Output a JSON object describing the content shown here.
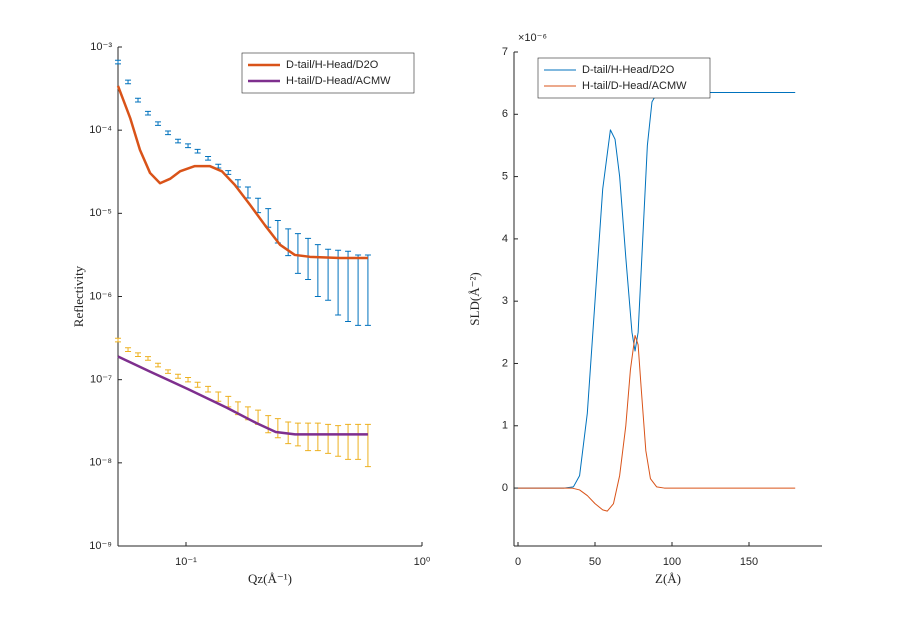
{
  "chart_data": [
    {
      "type": "line",
      "x_label": "Qz(Å⁻¹)",
      "y_label": "Reflectivity",
      "xscale": "log",
      "yscale": "log",
      "xlim": [
        0.0515,
        1
      ],
      "ylim": [
        1e-09,
        0.001
      ],
      "xticks": [
        {
          "value": 0.1,
          "label": "10⁻¹"
        },
        {
          "value": 1,
          "label": "10⁰"
        }
      ],
      "yticks": [
        {
          "value": 1e-09,
          "label": "10⁻⁹"
        },
        {
          "value": 1e-08,
          "label": "10⁻⁸"
        },
        {
          "value": 1e-07,
          "label": "10⁻⁷"
        },
        {
          "value": 1e-06,
          "label": "10⁻⁶"
        },
        {
          "value": 1e-05,
          "label": "10⁻⁵"
        },
        {
          "value": 0.0001,
          "label": "10⁻⁴"
        },
        {
          "value": 0.001,
          "label": "10⁻³"
        }
      ],
      "legend": "northeast",
      "series": [
        {
          "color": "#0072bd",
          "x": [
            0.0515,
            0.0568,
            0.0626,
            0.069,
            0.0761,
            0.0839,
            0.0925,
            0.102,
            0.112,
            0.124,
            0.137,
            0.151,
            0.166,
            0.183,
            0.202,
            0.223,
            0.245,
            0.271,
            0.298,
            0.329,
            0.362,
            0.4,
            0.441,
            0.486,
            0.536,
            0.59
          ],
          "values": [
            0.00066,
            0.00038,
            0.00023,
            0.00016,
            0.00012,
            9.3e-05,
            7.4e-05,
            6.5e-05,
            5.6e-05,
            4.6e-05,
            3.7e-05,
            3.1e-05,
            2.3e-05,
            1.8e-05,
            1.27e-05,
            9.1e-06,
            6.3e-06,
            4.8e-06,
            3.8e-06,
            3.3e-06,
            2.6e-06,
            2.3e-06,
            2.1e-06,
            2e-06,
            1.8e-06,
            1.8e-06
          ],
          "errors": [
            3.3e-05,
            1.9e-05,
            1.2e-05,
            8e-06,
            6e-06,
            4.7e-06,
            3.7e-06,
            3.3e-06,
            2.8e-06,
            2.3e-06,
            1.9e-06,
            1.6e-06,
            2.3e-06,
            2.7e-06,
            2.5e-06,
            2.3e-06,
            1.9e-06,
            1.7e-06,
            1.9e-06,
            1.7e-06,
            1.6e-06,
            1.4e-06,
            1.5e-06,
            1.5e-06,
            1.35e-06,
            1.35e-06
          ]
        },
        {
          "color": "#edb120",
          "x": [
            0.0515,
            0.0568,
            0.0626,
            0.069,
            0.0761,
            0.0839,
            0.0925,
            0.102,
            0.112,
            0.124,
            0.137,
            0.151,
            0.166,
            0.183,
            0.202,
            0.223,
            0.245,
            0.271,
            0.298,
            0.329,
            0.362,
            0.4,
            0.441,
            0.486,
            0.536,
            0.59
          ],
          "values": [
            3e-07,
            2.3e-07,
            2e-07,
            1.8e-07,
            1.5e-07,
            1.25e-07,
            1.1e-07,
            1e-07,
            8.7e-08,
            7.7e-08,
            6.3e-08,
            5.5e-08,
            4.6e-08,
            4e-08,
            3.6e-08,
            3e-08,
            2.7e-08,
            2.4e-08,
            2.3e-08,
            2.2e-08,
            2.2e-08,
            2.1e-08,
            2e-08,
            2e-08,
            2e-08,
            1.9e-08
          ],
          "errors": [
            1.5e-08,
            1.2e-08,
            1e-08,
            9e-09,
            7.5e-09,
            6e-09,
            6e-09,
            6e-09,
            6e-09,
            6e-09,
            8e-09,
            8e-09,
            8e-09,
            7e-09,
            7e-09,
            7e-09,
            7e-09,
            7e-09,
            7e-09,
            8e-09,
            8e-09,
            8e-09,
            8e-09,
            9e-09,
            9e-09,
            1e-08
          ]
        },
        {
          "name": "D-tail/H-Head/D2O",
          "color": "#d95319",
          "linewidth": 2.5,
          "x": [
            0.0515,
            0.058,
            0.0638,
            0.0704,
            0.0776,
            0.0856,
            0.0943,
            0.109,
            0.126,
            0.142,
            0.161,
            0.187,
            0.216,
            0.25,
            0.289,
            0.335,
            0.45,
            0.59
          ],
          "values": [
            0.00034,
            0.00014,
            5.8e-05,
            3.06e-05,
            2.3e-05,
            2.6e-05,
            3.2e-05,
            3.7e-05,
            3.7e-05,
            3.2e-05,
            2.2e-05,
            1.26e-05,
            7.2e-06,
            4.2e-06,
            3.16e-06,
            3e-06,
            2.9e-06,
            2.9e-06
          ]
        },
        {
          "name": "H-tail/D-Head/ACMW",
          "color": "#7e2f8e",
          "linewidth": 2.5,
          "x": [
            0.0515,
            0.0704,
            0.102,
            0.149,
            0.199,
            0.24,
            0.29,
            0.59
          ],
          "values": [
            1.9e-07,
            1.25e-07,
            7.7e-08,
            4.6e-08,
            3e-08,
            2.35e-08,
            2.2e-08,
            2.2e-08
          ]
        }
      ]
    },
    {
      "type": "line",
      "x_label": "Z(Å)",
      "y_label": "SLD(Å⁻²)",
      "y_multiplier": "×10⁻⁶",
      "xscale": "linear",
      "yscale": "linear",
      "xlim": [
        -2.6,
        197.4
      ],
      "ylim": [
        -0.93,
        7
      ],
      "xticks": [
        0,
        50,
        100,
        150
      ],
      "yticks": [
        0,
        1,
        2,
        3,
        4,
        5,
        6,
        7
      ],
      "legend": "northwest",
      "series": [
        {
          "name": "D-tail/H-Head/D2O",
          "color": "#0072bd",
          "linewidth": 1,
          "x": [
            0,
            30,
            36,
            40,
            45,
            50,
            55,
            60,
            63,
            66,
            70,
            74,
            76,
            78,
            81,
            84,
            87,
            90,
            95,
            180
          ],
          "values": [
            0,
            0,
            0.02,
            0.2,
            1.2,
            3.0,
            4.8,
            5.75,
            5.6,
            5.0,
            3.7,
            2.5,
            2.2,
            2.5,
            4.0,
            5.5,
            6.2,
            6.33,
            6.35,
            6.35
          ]
        },
        {
          "name": "H-tail/D-Head/ACMW",
          "color": "#d95319",
          "linewidth": 1,
          "x": [
            0,
            35,
            40,
            45,
            50,
            55,
            58,
            62,
            66,
            70,
            73,
            76,
            78,
            80,
            83,
            86,
            90,
            95,
            180
          ],
          "values": [
            0,
            0,
            -0.03,
            -0.12,
            -0.25,
            -0.35,
            -0.37,
            -0.25,
            0.2,
            1.0,
            1.9,
            2.45,
            2.3,
            1.6,
            0.6,
            0.15,
            0.02,
            0,
            0
          ]
        }
      ]
    }
  ]
}
